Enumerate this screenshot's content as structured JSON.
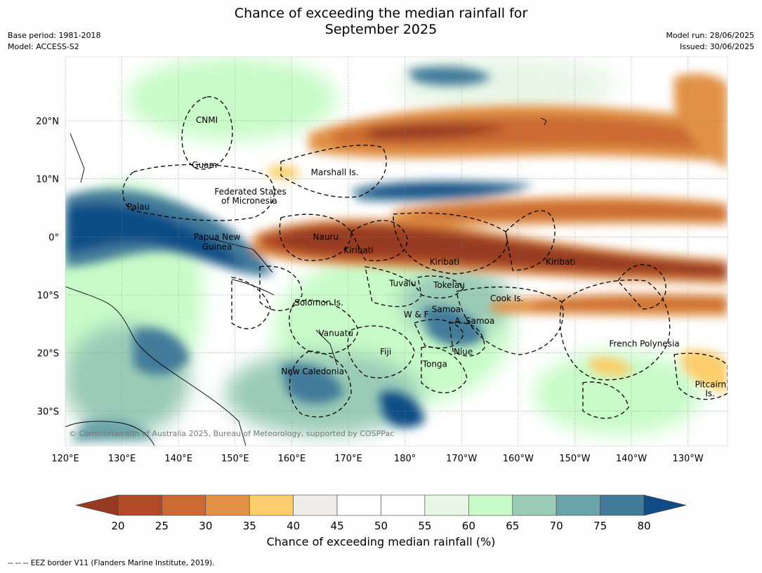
{
  "title_line1": "Chance of exceeding the median rainfall for",
  "title_line2": "September 2025",
  "base_period": "Base period: 1981-2018",
  "model": "Model: ACCESS-S2",
  "model_run": "Model run: 28/06/2025",
  "issued": "Issued: 30/06/2025",
  "copyright": "© Commonwealth of Australia 2025, Bureau of Meteorology, supported by COSPPac",
  "footnote": "-- -- -- EEZ border V11 (Flanders Marine Institute, 2019).",
  "map": {
    "lon_range": [
      120,
      237
    ],
    "lat_range": [
      -36,
      31
    ],
    "lon_ticks": [
      "120°E",
      "130°E",
      "140°E",
      "150°E",
      "160°E",
      "170°E",
      "180°",
      "170°W",
      "160°W",
      "150°W",
      "140°W",
      "130°W"
    ],
    "lat_ticks": [
      {
        "lat": 20,
        "label": "20°N"
      },
      {
        "lat": 10,
        "label": "10°N"
      },
      {
        "lat": 0,
        "label": "0°"
      },
      {
        "lat": -10,
        "label": "10°S"
      },
      {
        "lat": -20,
        "label": "20°S"
      },
      {
        "lat": -30,
        "label": "30°S"
      }
    ],
    "labels": [
      {
        "text": "CNMI",
        "lon": 145.0,
        "lat": 20.1
      },
      {
        "text": "Guam",
        "lon": 144.6,
        "lat": 12.4
      },
      {
        "text": "Marshall Is.",
        "lon": 167.6,
        "lat": 11.1
      },
      {
        "text": "Federated States",
        "lon": 152.7,
        "lat": 7.8
      },
      {
        "text": "of Micronesia",
        "lon": 152.5,
        "lat": 6.2
      },
      {
        "text": "Palau",
        "lon": 132.9,
        "lat": 5.2
      },
      {
        "text": "Papua New",
        "lon": 146.8,
        "lat": 0.0
      },
      {
        "text": "Guinea",
        "lon": 146.8,
        "lat": -1.7
      },
      {
        "text": "Nauru",
        "lon": 166.0,
        "lat": 0.0
      },
      {
        "text": "Kiribati",
        "lon": 171.8,
        "lat": -2.3
      },
      {
        "text": "Kiribati",
        "lon": 187.0,
        "lat": -4.3
      },
      {
        "text": "Kiribati",
        "lon": 207.5,
        "lat": -4.3
      },
      {
        "text": "Tuvalu",
        "lon": 179.6,
        "lat": -8.0
      },
      {
        "text": "Tokelau",
        "lon": 187.8,
        "lat": -8.3
      },
      {
        "text": "Cook Is.",
        "lon": 198.0,
        "lat": -10.6
      },
      {
        "text": "Solomon Is.",
        "lon": 164.8,
        "lat": -11.3
      },
      {
        "text": "Samoa",
        "lon": 187.3,
        "lat": -12.5
      },
      {
        "text": "W & F",
        "lon": 182.0,
        "lat": -13.4
      },
      {
        "text": "A. Samoa",
        "lon": 192.3,
        "lat": -14.5
      },
      {
        "text": "Vanuatu",
        "lon": 167.8,
        "lat": -16.6
      },
      {
        "text": "French Polynesia",
        "lon": 222.3,
        "lat": -18.4
      },
      {
        "text": "Fiji",
        "lon": 176.6,
        "lat": -19.8
      },
      {
        "text": "Niue",
        "lon": 190.3,
        "lat": -19.8
      },
      {
        "text": "Tonga",
        "lon": 185.3,
        "lat": -21.9
      },
      {
        "text": "New Caledonia",
        "lon": 163.7,
        "lat": -23.2
      },
      {
        "text": "Pitcairn",
        "lon": 234.0,
        "lat": -25.4
      },
      {
        "text": "Is.",
        "lon": 233.9,
        "lat": -27.0
      }
    ]
  },
  "colorbar": {
    "title": "Chance of exceeding median rainfall (%)",
    "ticks": [
      "20",
      "25",
      "30",
      "35",
      "40",
      "45",
      "50",
      "55",
      "60",
      "65",
      "70",
      "75",
      "80"
    ],
    "under_color": "#963a22",
    "over_color": "#104d86",
    "colors": [
      "#b24a27",
      "#cb6a32",
      "#e19144",
      "#fccd6b",
      "#efede9",
      "#ffffff",
      "#ffffff",
      "#e8f6e6",
      "#c8fbc8",
      "#9acbb7",
      "#6aa3a9",
      "#427a9a"
    ]
  }
}
